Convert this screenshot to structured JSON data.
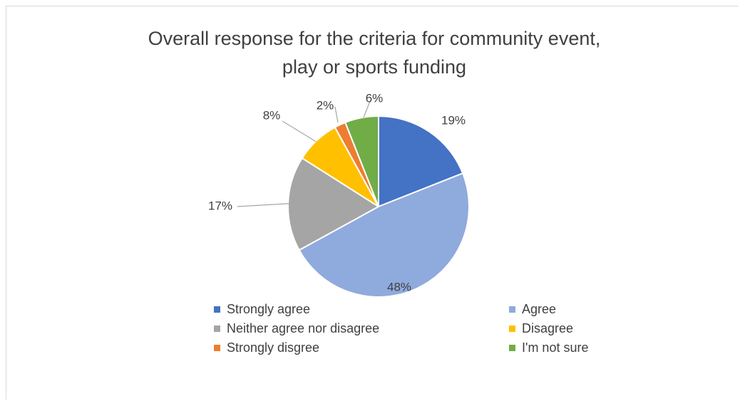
{
  "chart_data": {
    "type": "pie",
    "title": "Overall response for the criteria for community event, play or sports funding",
    "legend_position": "bottom",
    "slices": [
      {
        "label": "Strongly agree",
        "value": 19,
        "display": "19%",
        "color": "#4472C4"
      },
      {
        "label": "Agree",
        "value": 48,
        "display": "48%",
        "color": "#8FAADC"
      },
      {
        "label": "Neither agree nor disagree",
        "value": 17,
        "display": "17%",
        "color": "#A5A5A5"
      },
      {
        "label": "Disagree",
        "value": 8,
        "display": "8%",
        "color": "#FFC000"
      },
      {
        "label": "Strongly disgree",
        "value": 2,
        "display": "2%",
        "color": "#ED7D31"
      },
      {
        "label": "I'm not sure",
        "value": 6,
        "display": "6%",
        "color": "#70AD47"
      }
    ]
  }
}
